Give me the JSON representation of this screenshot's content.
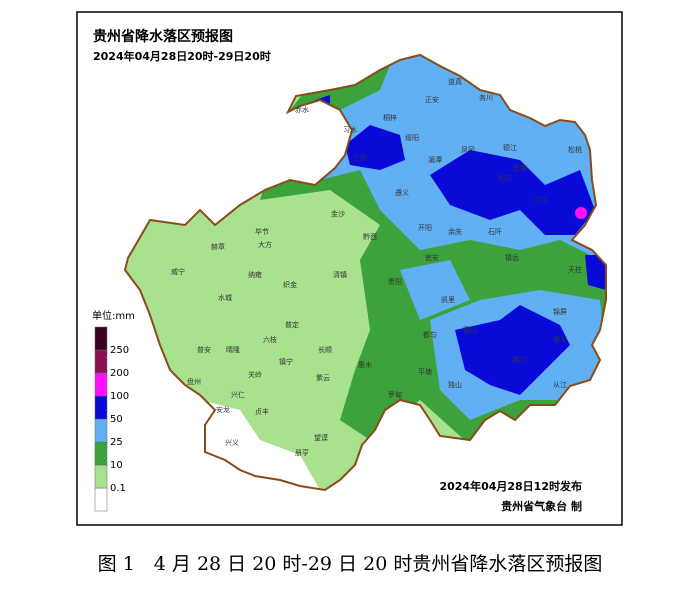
{
  "header": {
    "title": "贵州省降水落区预报图",
    "subtitle": "2024年04月28日20时-29日20时"
  },
  "legend": {
    "unit": "单位:mm",
    "levels": [
      0.1,
      10,
      25,
      50,
      100,
      200,
      250
    ],
    "colors": [
      "#ffffff",
      "#a8e28e",
      "#3ca23c",
      "#62b0f4",
      "#0a0ad8",
      "#ff10ff",
      "#8a1050",
      "#3a0320"
    ]
  },
  "footer": {
    "issued": "2024年04月28日12时发布",
    "agency": "贵州省气象台 制"
  },
  "cities": [
    "道真",
    "正安",
    "务川",
    "习水",
    "赤水",
    "桐梓",
    "绥阳",
    "湄潭",
    "凤冈",
    "德江",
    "思南",
    "印江",
    "松桃",
    "江口",
    "石阡",
    "余庆",
    "仁怀",
    "遵义",
    "金沙",
    "黔西",
    "开阳",
    "瓮安",
    "镇远",
    "天柱",
    "锦屏",
    "黎平",
    "榕江",
    "从江",
    "雷山",
    "凯里",
    "都匀",
    "独山",
    "平塘",
    "罗甸",
    "惠水",
    "长顺",
    "贵阳",
    "清镇",
    "织金",
    "纳雍",
    "大方",
    "毕节",
    "赫章",
    "威宁",
    "水城",
    "六枝",
    "普定",
    "镇宁",
    "关岭",
    "晴隆",
    "普安",
    "盘州",
    "兴仁",
    "贞丰",
    "安龙",
    "兴义",
    "册亨",
    "望谟",
    "紫云"
  ],
  "caption": "图 1　4 月 28 日 20 时-29 日 20 时贵州省降水落区预报图"
}
